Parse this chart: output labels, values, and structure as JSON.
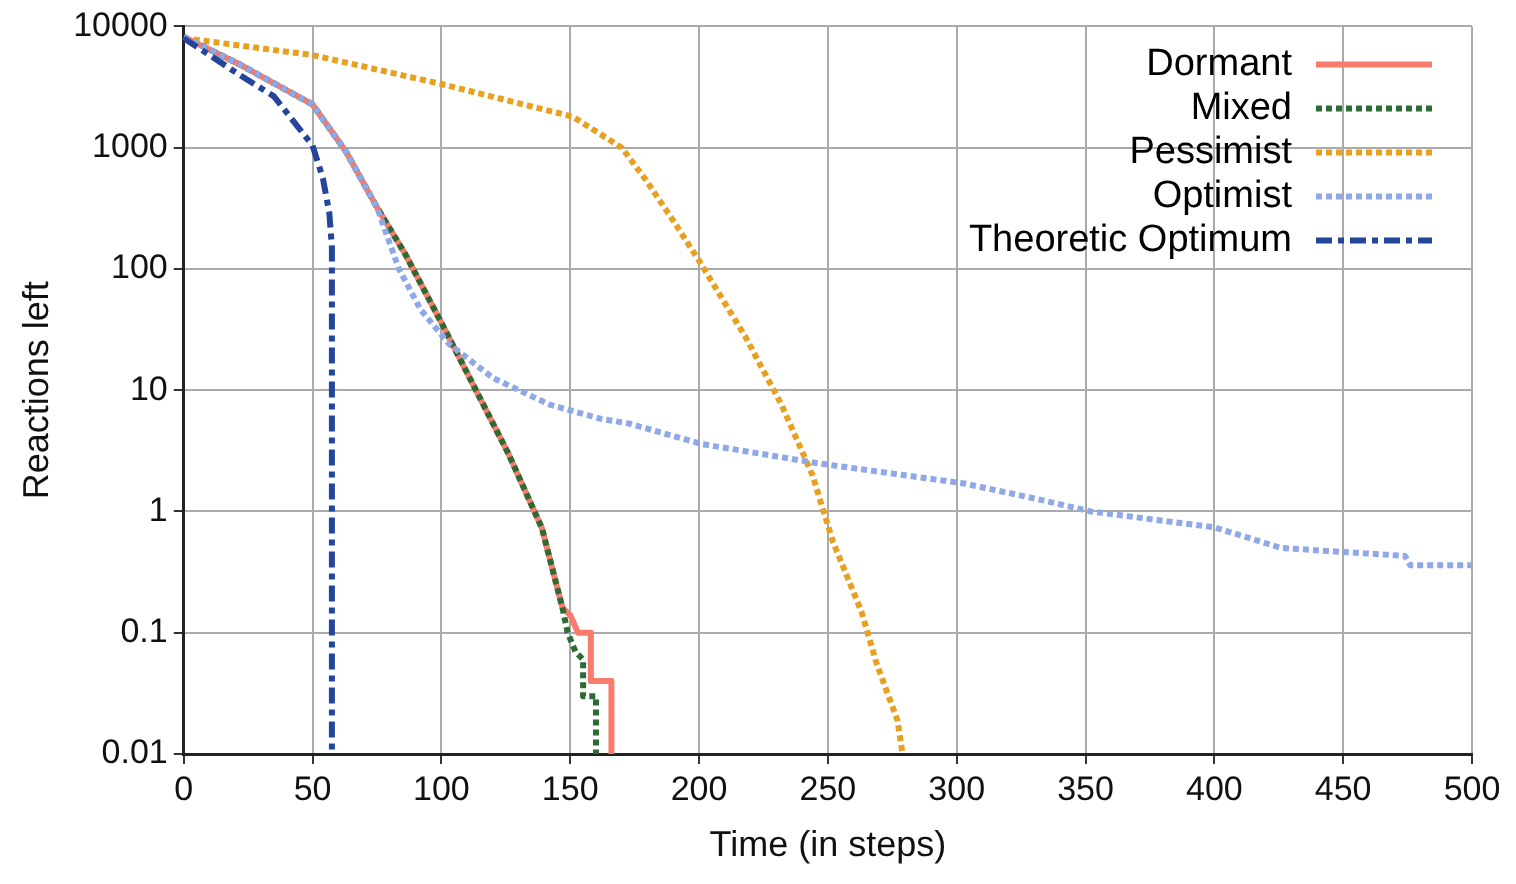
{
  "chart_data": {
    "type": "line",
    "xlabel": "Time (in steps)",
    "ylabel": "Reactions left",
    "log": "y",
    "grid": true,
    "legend": "top right",
    "xlim": [
      0,
      500
    ],
    "xticks": [
      0,
      50,
      100,
      150,
      200,
      250,
      300,
      350,
      400,
      450,
      500
    ],
    "ylim": [
      0.01,
      10000
    ],
    "yticks": [
      0.01,
      0.1,
      1,
      10,
      100,
      1000,
      10000
    ],
    "marker": "none",
    "series": [
      {
        "name": "Dormant",
        "color": "#f87c6e",
        "line_style": "solid",
        "x": [
          0,
          21,
          50,
          63,
          75,
          86,
          100,
          111,
          126,
          139,
          147,
          150,
          153,
          158,
          158,
          166,
          166
        ],
        "values": [
          8200,
          4950,
          2270,
          925,
          322,
          132,
          36,
          12.6,
          3,
          0.73,
          0.16,
          0.14,
          0.1,
          0.1,
          0.04,
          0.04,
          0.01
        ]
      },
      {
        "name": "Mixed",
        "color": "#2e6b34",
        "line_style": "dotted",
        "x": [
          0,
          21,
          50,
          63,
          75,
          86,
          100,
          111,
          126,
          139,
          147,
          149,
          152,
          155,
          155,
          160,
          160
        ],
        "values": [
          8200,
          4950,
          2270,
          925,
          322,
          132,
          36,
          12.6,
          3,
          0.73,
          0.16,
          0.1,
          0.07,
          0.06,
          0.03,
          0.03,
          0.01
        ]
      },
      {
        "name": "Pessimist",
        "color": "#e8a020",
        "line_style": "dotted",
        "x": [
          0,
          50,
          100,
          151,
          170,
          179,
          190,
          200,
          218,
          232,
          244,
          252,
          263,
          269,
          277,
          279
        ],
        "values": [
          8000,
          5800,
          3350,
          1800,
          1000,
          555,
          250,
          117,
          27.5,
          7.6,
          2,
          0.56,
          0.15,
          0.055,
          0.019,
          0.01
        ]
      },
      {
        "name": "Optimist",
        "color": "#8fa8e8",
        "line_style": "dotted",
        "x": [
          0,
          21,
          50,
          63,
          75,
          83.5,
          92,
          103,
          120,
          142,
          162,
          173,
          201,
          246,
          303,
          331,
          352,
          400,
          426,
          474,
          476,
          500
        ],
        "values": [
          8200,
          4950,
          2270,
          925,
          322,
          100,
          46,
          24,
          12.6,
          7.6,
          5.8,
          5.3,
          3.6,
          2.5,
          1.7,
          1.27,
          1,
          0.74,
          0.5,
          0.43,
          0.36,
          0.36
        ]
      },
      {
        "name": "Theoretic Optimum",
        "color": "#23459a",
        "line_style": "dashed",
        "x": [
          0,
          21,
          35,
          50,
          54,
          56.5,
          57.5,
          57.5
        ],
        "values": [
          8000,
          4070,
          2650,
          1040,
          560,
          290,
          150,
          0.01
        ]
      }
    ]
  }
}
